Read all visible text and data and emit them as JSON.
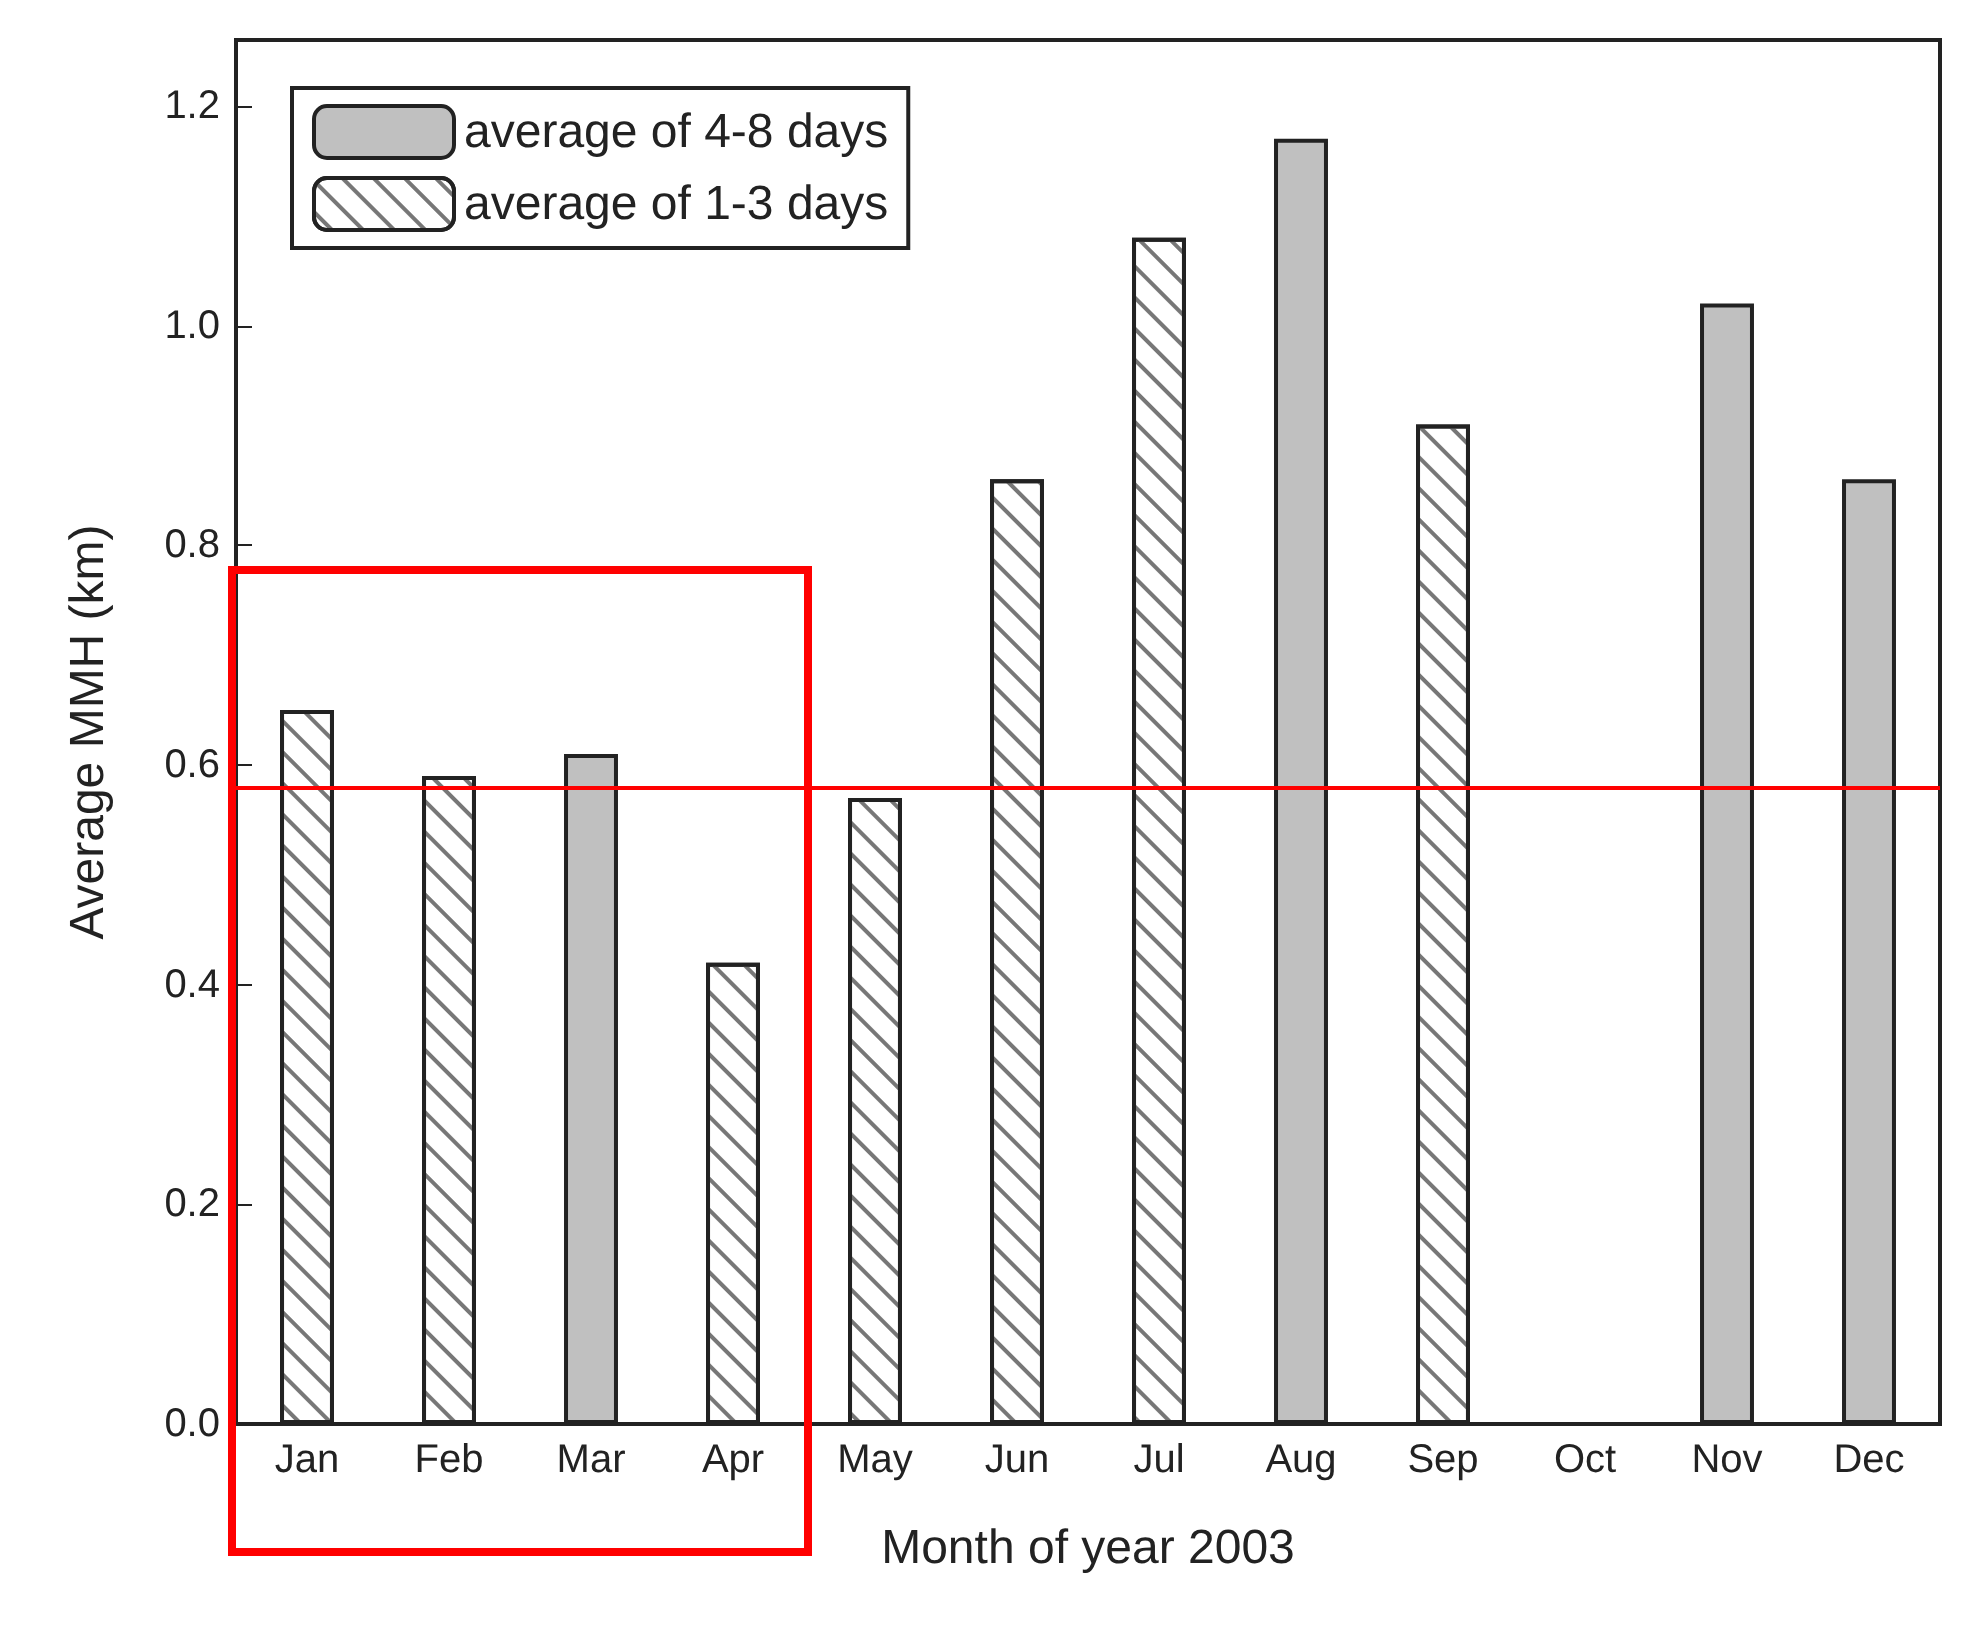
{
  "chart_data": {
    "type": "bar",
    "xlabel": "Month of year 2003",
    "ylabel": "Average MMH (km)",
    "categories": [
      "Jan",
      "Feb",
      "Mar",
      "Apr",
      "May",
      "Jun",
      "Jul",
      "Aug",
      "Sep",
      "Oct",
      "Nov",
      "Dec"
    ],
    "series": [
      {
        "name": "average of 4-8 days",
        "color": "#c0c0c0",
        "values": [
          null,
          null,
          0.61,
          null,
          null,
          null,
          null,
          1.17,
          null,
          null,
          1.02,
          0.86
        ]
      },
      {
        "name": "average of 1-3 days",
        "color": "#ffffff",
        "values": [
          0.65,
          0.59,
          null,
          0.42,
          0.57,
          0.86,
          1.08,
          null,
          0.91,
          null,
          null,
          null
        ]
      }
    ],
    "stacked": true,
    "ylim": [
      0,
      1.26
    ],
    "yticks": [
      {
        "value": 0,
        "label": "0.0"
      },
      0.2,
      0.4,
      0.6,
      0.8,
      {
        "value": 1,
        "label": "1.0"
      },
      1.2
    ],
    "ref_lines": [
      {
        "axis": "y",
        "value": 0.58,
        "color": "#ff0000"
      }
    ],
    "grid": false,
    "legend": "top left"
  }
}
